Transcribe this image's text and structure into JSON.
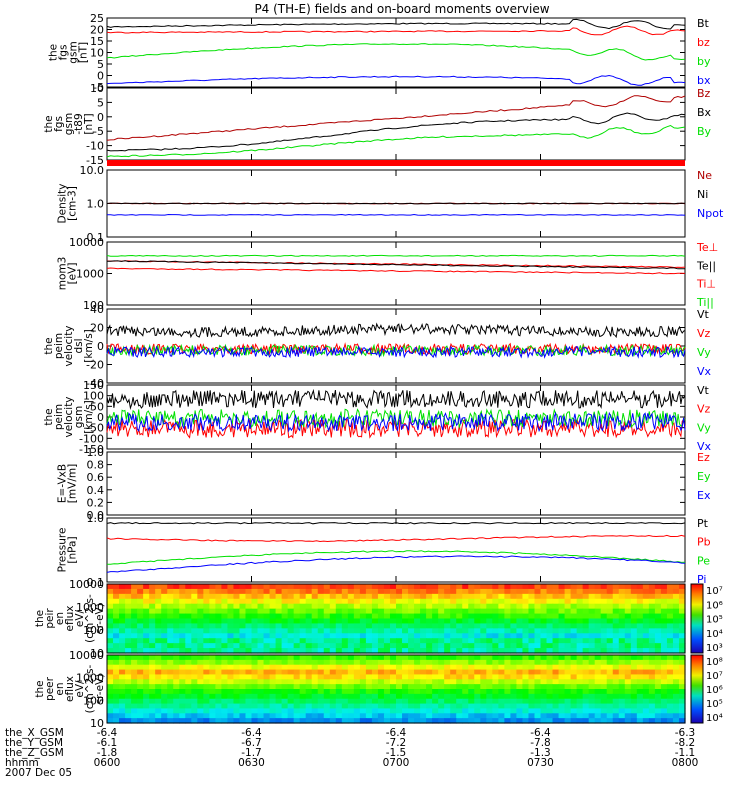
{
  "title": "P4 (TH-E) fields and on-board moments overview",
  "colors": {
    "black": "#000000",
    "red": "#ff0000",
    "green": "#00e000",
    "blue": "#0000ff",
    "darkred": "#b00000"
  },
  "chart_data": {
    "type": "line",
    "x_ticks": [
      "0600",
      "0630",
      "0700",
      "0730",
      "0800"
    ],
    "footer": {
      "rows": [
        {
          "label": "the_X_GSM",
          "values": [
            "-6.4",
            "-6.4",
            "-6.4",
            "-6.4",
            "-6.3"
          ]
        },
        {
          "label": "the_Y_GSM",
          "values": [
            "-6.1",
            "-6.7",
            "-7.2",
            "-7.8",
            "-8.2"
          ]
        },
        {
          "label": "the_Z_GSM",
          "values": [
            "-1.8",
            "-1.7",
            "-1.5",
            "-1.3",
            "-1.1"
          ]
        },
        {
          "label": "hhmm",
          "values": [
            "0600",
            "0630",
            "0700",
            "0730",
            "0800"
          ]
        }
      ],
      "date": "2007 Dec 05"
    },
    "panels": [
      {
        "ylabel": [
          "the",
          "fgs",
          "gsm",
          "[nT]"
        ],
        "yticks": [
          "25",
          "20",
          "15",
          "10",
          "5",
          "0",
          "-5"
        ],
        "series": [
          {
            "name": "Bt",
            "color": "black"
          },
          {
            "name": "bz",
            "color": "red"
          },
          {
            "name": "by",
            "color": "green"
          },
          {
            "name": "bx",
            "color": "blue"
          }
        ]
      },
      {
        "ylabel": [
          "the",
          "fgs",
          "gsm",
          "-t89",
          "[nT]"
        ],
        "yticks": [
          "10",
          "5",
          "0",
          "-5",
          "-10",
          "-15"
        ],
        "series": [
          {
            "name": "Bz",
            "color": "darkred"
          },
          {
            "name": "Bx",
            "color": "black"
          },
          {
            "name": "By",
            "color": "green"
          }
        ]
      },
      {
        "ylabel": [
          "Density",
          "[cm-3]"
        ],
        "yticks": [
          "10.0",
          "1.0",
          "0.1"
        ],
        "series": [
          {
            "name": "Ne",
            "color": "darkred"
          },
          {
            "name": "Ni",
            "color": "black"
          },
          {
            "name": "Npot",
            "color": "blue"
          }
        ]
      },
      {
        "ylabel": [
          "mom3",
          "[eV]"
        ],
        "yticks": [
          "10000",
          "1000",
          "100"
        ],
        "series": [
          {
            "name": "Te⊥",
            "color": "red"
          },
          {
            "name": "Te||",
            "color": "black"
          },
          {
            "name": "Ti⊥",
            "color": "red"
          },
          {
            "name": "Ti||",
            "color": "green"
          }
        ]
      },
      {
        "ylabel": [
          "the",
          "peim",
          "velocity",
          "dsl",
          "[km/s]"
        ],
        "yticks": [
          "40",
          "20",
          "0",
          "-20",
          "-40"
        ],
        "series": [
          {
            "name": "Vt",
            "color": "black"
          },
          {
            "name": "Vz",
            "color": "red"
          },
          {
            "name": "Vy",
            "color": "green"
          },
          {
            "name": "Vx",
            "color": "blue"
          }
        ]
      },
      {
        "ylabel": [
          "the",
          "peim",
          "velocity",
          "gsm",
          "[km/s]"
        ],
        "yticks": [
          "150",
          "100",
          "50",
          "0",
          "-50",
          "-100",
          "-150"
        ],
        "series": [
          {
            "name": "Vt",
            "color": "black"
          },
          {
            "name": "Vz",
            "color": "red"
          },
          {
            "name": "Vy",
            "color": "green"
          },
          {
            "name": "Vx",
            "color": "blue"
          }
        ]
      },
      {
        "ylabel": [
          "E=-VxB",
          "[mV/m]"
        ],
        "yticks": [
          "1.0",
          "0.8",
          "0.6",
          "0.4",
          "0.2",
          "0.0"
        ],
        "series": [
          {
            "name": "Ez",
            "color": "red"
          },
          {
            "name": "Ey",
            "color": "green"
          },
          {
            "name": "Ex",
            "color": "blue"
          }
        ]
      },
      {
        "ylabel": [
          "Pressure",
          "[nPa]"
        ],
        "yticks": [
          "1.0",
          "0.1"
        ],
        "series": [
          {
            "name": "Pt",
            "color": "black"
          },
          {
            "name": "Pb",
            "color": "red"
          },
          {
            "name": "Pe",
            "color": "green"
          },
          {
            "name": "Pi",
            "color": "blue"
          }
        ]
      },
      {
        "ylabel": [
          "the",
          "peir",
          "en",
          "eflux",
          "eV/",
          "(cm^2-s-",
          "sr-eV)"
        ],
        "yticks": [
          "10000",
          "1000",
          "100",
          "10"
        ],
        "colorbar": [
          "10⁷",
          "10⁶",
          "10⁵",
          "10⁴",
          "10³"
        ]
      },
      {
        "ylabel": [
          "the",
          "peer",
          "en",
          "eflux",
          "eV/",
          "(cm^2-s-",
          "sr-eV)"
        ],
        "yticks": [
          "10000",
          "1000",
          "100",
          "10"
        ],
        "colorbar": [
          "10⁸",
          "10⁷",
          "10⁶",
          "10⁵",
          "10⁴"
        ]
      }
    ]
  }
}
